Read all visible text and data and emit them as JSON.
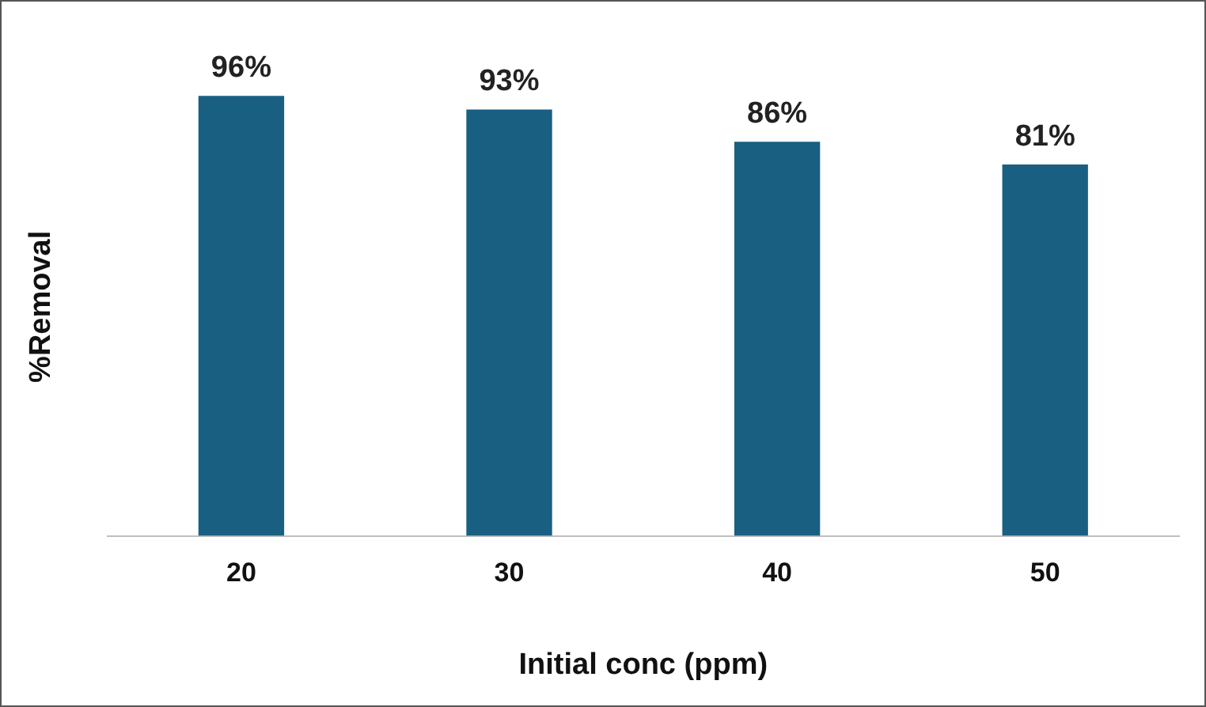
{
  "chart_data": {
    "type": "bar",
    "xlabel": "Initial conc (ppm)",
    "ylabel": "%Removal",
    "categories": [
      "20",
      "30",
      "40",
      "50"
    ],
    "values": [
      96,
      93,
      86,
      81
    ],
    "value_labels": [
      "96%",
      "93%",
      "86%",
      "81%"
    ],
    "color": "#195f82",
    "grid": false,
    "legend": false
  }
}
